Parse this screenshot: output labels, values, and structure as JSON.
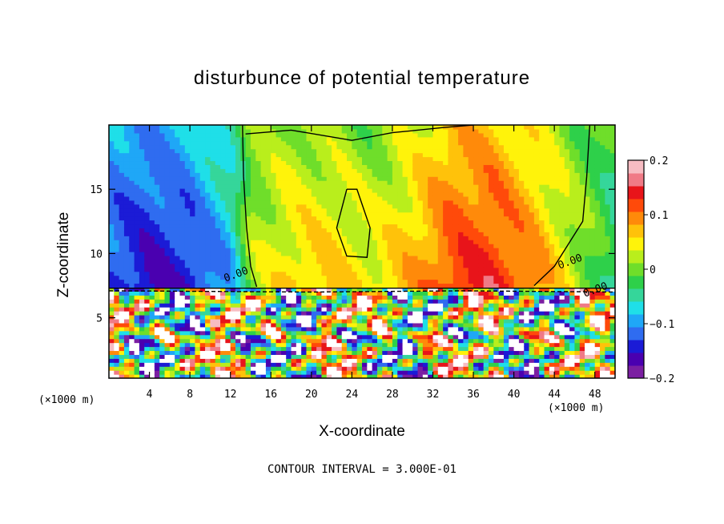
{
  "chart_data": {
    "type": "heatmap",
    "title": "disturbunce of potential temperature",
    "xlabel": "X-coordinate",
    "ylabel": "Z-coordinate",
    "x_unit": "(×1000 m)",
    "y_unit": "(×1000 m)",
    "xlim": [
      0,
      50
    ],
    "ylim": [
      0.3,
      20
    ],
    "x_ticks": [
      4,
      8,
      12,
      16,
      20,
      24,
      28,
      32,
      36,
      40,
      44,
      48
    ],
    "y_ticks": [
      5,
      10,
      15
    ],
    "colorbar": {
      "range": [
        -0.2,
        0.2
      ],
      "tick_values": [
        0.2,
        0.1,
        0,
        -0.1,
        -0.2
      ],
      "tick_labels": [
        "0.2",
        "0.1",
        "0",
        "−0.1",
        "−0.2"
      ],
      "colors": [
        "#7b1fa2",
        "#4a00b0",
        "#1b1bd6",
        "#2f6cf0",
        "#1fa7f7",
        "#1fdfe8",
        "#35d69a",
        "#2ed04a",
        "#6fde2a",
        "#b9ee1c",
        "#fff30a",
        "#ffc20a",
        "#ff8a0a",
        "#ff4a0a",
        "#e8141a",
        "#f07a86",
        "#f7bcc2"
      ]
    },
    "contour_interval_text": "CONTOUR INTERVAL = 3.000E-01",
    "contour_labels": [
      "0.00",
      "0.00",
      "0.00"
    ],
    "upper_region_field": {
      "description_free": true,
      "x_profile": [
        0,
        4,
        8,
        12,
        14,
        18,
        22,
        26,
        30,
        34,
        38,
        42,
        46,
        50
      ],
      "values_low": [
        -0.13,
        -0.16,
        -0.15,
        -0.1,
        0.02,
        0.06,
        0.07,
        0.05,
        0.08,
        0.13,
        0.14,
        0.1,
        0.03,
        -0.05
      ],
      "values_high": [
        -0.09,
        -0.1,
        -0.08,
        -0.04,
        0.0,
        0.02,
        0.01,
        0.0,
        0.03,
        0.07,
        0.07,
        0.04,
        0.0,
        -0.02
      ]
    }
  }
}
